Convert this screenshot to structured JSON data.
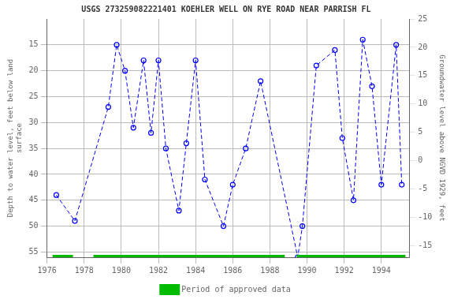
{
  "chart_data": {
    "type": "line",
    "title": "USGS 273259082221401 KOEHLER WELL ON RYE ROAD NEAR PARRISH FL",
    "ylabel": "Depth to water level, feet below land\nsurface",
    "y2label": "Groundwater level above NGVD 1929, feet",
    "xlim": [
      1976,
      1995.5
    ],
    "xticks": [
      1976,
      1978,
      1980,
      1982,
      1984,
      1986,
      1988,
      1990,
      1992,
      1994
    ],
    "ylim": [
      56,
      10
    ],
    "yticks": [
      15,
      20,
      25,
      30,
      35,
      40,
      45,
      50,
      55
    ],
    "y2lim": [
      -17,
      25
    ],
    "y2ticks": [
      25,
      20,
      15,
      10,
      5,
      0,
      -5,
      -10,
      -15
    ],
    "grid": true,
    "legend": "bottom",
    "x": [
      1976.5,
      1977.5,
      1979.3,
      1979.75,
      1980.2,
      1980.65,
      1981.2,
      1981.6,
      1982.0,
      1982.4,
      1983.1,
      1983.5,
      1984.0,
      1984.5,
      1985.5,
      1986.0,
      1986.7,
      1987.5,
      1989.5,
      1989.75,
      1990.5,
      1991.5,
      1991.9,
      1992.5,
      1993.0,
      1993.5,
      1994.0,
      1994.8,
      1995.1
    ],
    "series": [
      {
        "color": "blue",
        "marker": "circle",
        "line_style": "dashed",
        "values": [
          44,
          49,
          27,
          15,
          20,
          31,
          18,
          32,
          18,
          35,
          47,
          34,
          18,
          41,
          50,
          42,
          35,
          22,
          56,
          50,
          19,
          16,
          33,
          45,
          14,
          23,
          42,
          15,
          42
        ]
      },
      {
        "name": "Period of approved data",
        "color": "#00bb00",
        "periods": [
          [
            1976.3,
            1977.4
          ],
          [
            1978.5,
            1988.8
          ],
          [
            1989.45,
            1995.3
          ]
        ]
      }
    ]
  }
}
